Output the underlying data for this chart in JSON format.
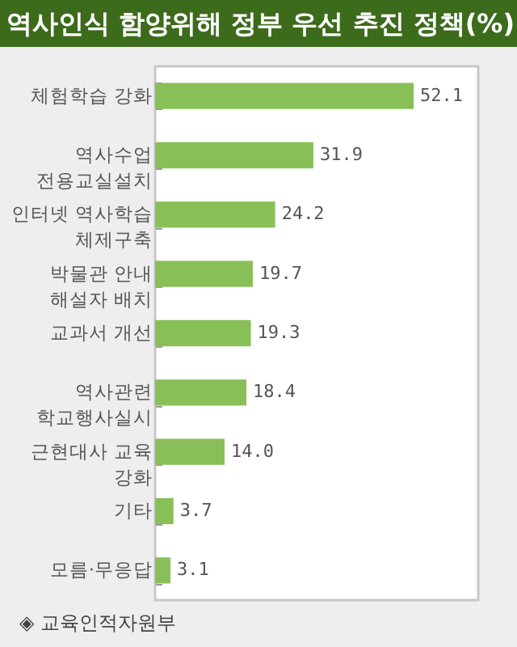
{
  "chart_data": {
    "type": "bar",
    "orientation": "horizontal",
    "title": "역사인식 함양위해 정부 우선 추진 정책(%)",
    "categories": [
      "체험학습 강화",
      "역사수업\n전용교실설치",
      "인터넷 역사학습\n체제구축",
      "박물관 안내\n해설자 배치",
      "교과서 개선",
      "역사관련\n학교행사실시",
      "근현대사 교육\n강화",
      "기타",
      "모름·무응답"
    ],
    "values": [
      52.1,
      31.9,
      24.2,
      19.7,
      19.3,
      18.4,
      14.0,
      3.7,
      3.1
    ],
    "value_labels": [
      "52.1",
      "31.9",
      "24.2",
      "19.7",
      "19.3",
      "18.4",
      "14.0",
      "3.7",
      "3.1"
    ],
    "color": "#88c057",
    "annotations": [
      "◈ 교육인적자원부"
    ]
  }
}
